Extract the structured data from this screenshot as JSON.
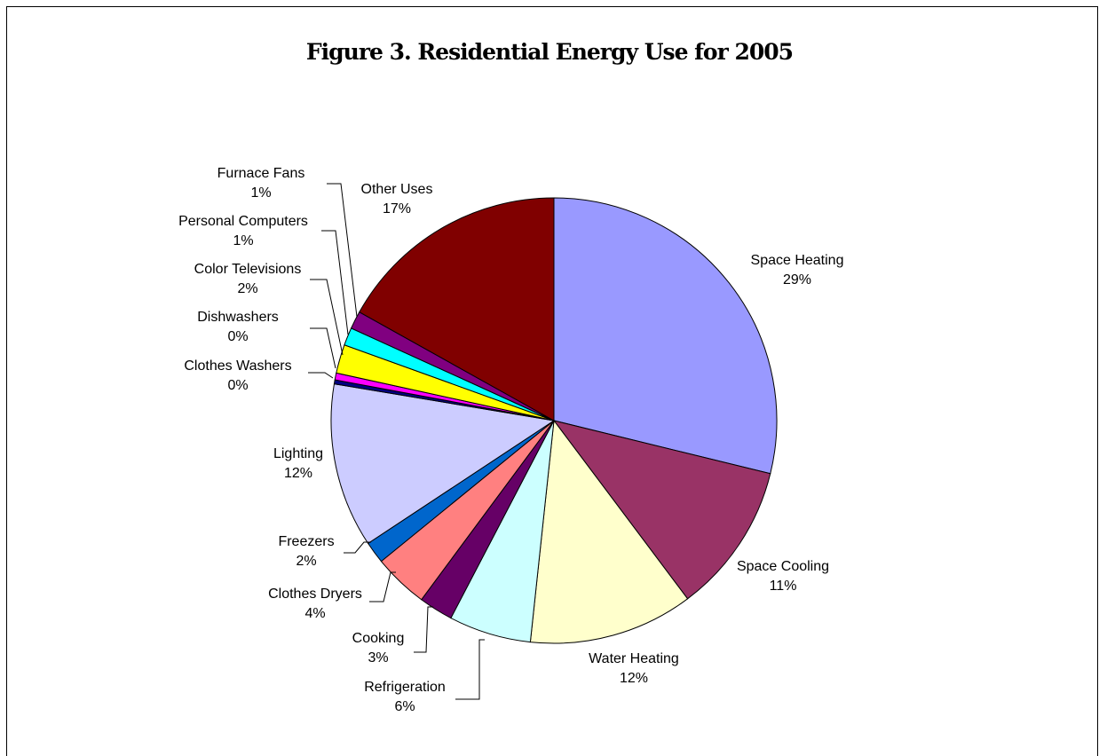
{
  "chart_data": {
    "type": "pie",
    "title": "Figure 3. Residential Energy Use for 2005",
    "slices": [
      {
        "name": "Space Heating",
        "value": 29,
        "label": "29%",
        "color": "#9999FF"
      },
      {
        "name": "Space Cooling",
        "value": 11,
        "label": "11%",
        "color": "#993366"
      },
      {
        "name": "Water Heating",
        "value": 12,
        "label": "12%",
        "color": "#FFFFCC"
      },
      {
        "name": "Refrigeration",
        "value": 6,
        "label": "6%",
        "color": "#CCFFFF"
      },
      {
        "name": "Cooking",
        "value": 2.5,
        "label": "3%",
        "color": "#660066"
      },
      {
        "name": "Clothes Dryers",
        "value": 4,
        "label": "4%",
        "color": "#FF8080"
      },
      {
        "name": "Freezers",
        "value": 1.6,
        "label": "2%",
        "color": "#0066CC"
      },
      {
        "name": "Lighting",
        "value": 12,
        "label": "12%",
        "color": "#CCCCFF"
      },
      {
        "name": "Clothes Washers",
        "value": 0.3,
        "label": "0%",
        "color": "#000080"
      },
      {
        "name": "Dishwashers",
        "value": 0.5,
        "label": "0%",
        "color": "#FF00FF"
      },
      {
        "name": "Color Televisions",
        "value": 2.1,
        "label": "2%",
        "color": "#FFFF00"
      },
      {
        "name": "Personal Computers",
        "value": 1.3,
        "label": "1%",
        "color": "#00FFFF"
      },
      {
        "name": "Furnace Fans",
        "value": 1.3,
        "label": "1%",
        "color": "#800080"
      },
      {
        "name": "Other Uses",
        "value": 17,
        "label": "17%",
        "color": "#800000"
      }
    ]
  }
}
